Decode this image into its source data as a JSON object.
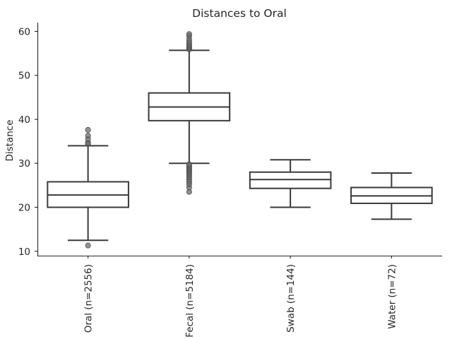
{
  "chart_data": {
    "type": "box",
    "title": "Distances to Oral",
    "xlabel": "",
    "ylabel": "Distance",
    "ylim": [
      9,
      62
    ],
    "yticks": [
      10,
      20,
      30,
      40,
      50,
      60
    ],
    "grid": false,
    "legend": false,
    "colors": {
      "box_stroke": "#3a3a3a",
      "flier": "#6e6e6e",
      "axis": "#262626"
    },
    "categories": [
      "Oral (n=2556)",
      "Fecal (n=5184)",
      "Swab (n=144)",
      "Water (n=72)"
    ],
    "boxes": [
      {
        "whisker_low": 12.5,
        "q1": 20.0,
        "median": 22.8,
        "q3": 25.8,
        "whisker_high": 34.0,
        "fliers": [
          11.3,
          34.4,
          34.7,
          35.5,
          36.3,
          37.6
        ]
      },
      {
        "whisker_low": 30.0,
        "q1": 39.7,
        "median": 42.8,
        "q3": 46.0,
        "whisker_high": 55.7,
        "fliers": [
          23.5,
          24.5,
          25.2,
          25.8,
          26.3,
          26.8,
          27.2,
          27.6,
          28.0,
          28.3,
          28.6,
          28.9,
          29.2,
          29.5,
          29.8,
          55.9,
          56.2,
          56.5,
          56.8,
          57.2,
          57.7,
          58.3,
          59.0,
          59.4
        ]
      },
      {
        "whisker_low": 20.0,
        "q1": 24.3,
        "median": 26.3,
        "q3": 28.0,
        "whisker_high": 30.8,
        "fliers": []
      },
      {
        "whisker_low": 17.3,
        "q1": 20.9,
        "median": 22.6,
        "q3": 24.5,
        "whisker_high": 27.8,
        "fliers": []
      }
    ]
  }
}
